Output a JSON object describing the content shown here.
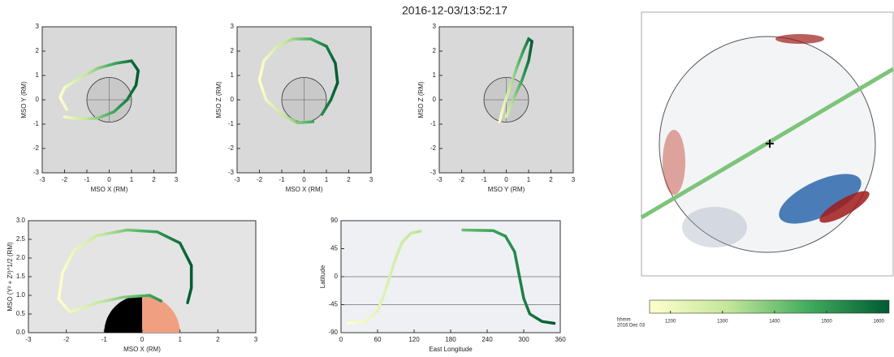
{
  "title": "2016-12-03/13:52:17",
  "chart_data": [
    {
      "type": "line",
      "xlabel": "MSO X (RM)",
      "ylabel": "MSO Y (RM)",
      "xlim": [
        -3,
        3
      ],
      "ylim": [
        -3,
        3
      ],
      "xticks": [
        -3,
        -2,
        -1,
        0,
        1,
        2,
        3
      ],
      "yticks": [
        -3,
        -2,
        -1,
        0,
        1,
        2,
        3
      ],
      "background": "#d9d9d9",
      "series": [
        {
          "x": [
            -1.9,
            -2.2,
            -2.0,
            -1.3,
            -0.5,
            0.3,
            1.0,
            1.3,
            1.2,
            0.8,
            0.2,
            -0.5,
            -1.3,
            -2.0
          ],
          "values": [
            -0.4,
            0.1,
            0.5,
            0.9,
            1.3,
            1.5,
            1.6,
            1.2,
            0.6,
            0,
            -0.5,
            -0.75,
            -0.8,
            -0.7
          ]
        }
      ]
    },
    {
      "type": "line",
      "xlabel": "MSO X (RM)",
      "ylabel": "MSO Z (RM)",
      "xlim": [
        -3,
        3
      ],
      "ylim": [
        -3,
        3
      ],
      "xticks": [
        -3,
        -2,
        -1,
        0,
        1,
        2,
        3
      ],
      "yticks": [
        -3,
        -2,
        -1,
        0,
        1,
        2,
        3
      ],
      "background": "#d9d9d9",
      "series": [
        {
          "x": [
            0.4,
            -0.3,
            -1.0,
            -1.7,
            -2.0,
            -1.8,
            -1.2,
            -0.5,
            0.3,
            1.0,
            1.4,
            1.5,
            1.2,
            0.8
          ],
          "values": [
            -0.9,
            -0.95,
            -0.6,
            0,
            0.8,
            1.6,
            2.2,
            2.5,
            2.5,
            2.2,
            1.5,
            0.7,
            0,
            -0.6
          ]
        }
      ]
    },
    {
      "type": "line",
      "xlabel": "MSO Y (RM)",
      "ylabel": "MSO Z (RM)",
      "xlim": [
        -3,
        3
      ],
      "ylim": [
        -3,
        3
      ],
      "xticks": [
        -3,
        -2,
        -1,
        0,
        1,
        2,
        3
      ],
      "yticks": [
        -3,
        -2,
        -1,
        0,
        1,
        2,
        3
      ],
      "background": "#d9d9d9",
      "series": [
        {
          "x": [
            -0.3,
            -0.1,
            0.2,
            0.5,
            0.8,
            1.0,
            1.15,
            1.0,
            0.7,
            0.3,
            0
          ],
          "values": [
            -0.9,
            -0.2,
            0.6,
            1.4,
            2.1,
            2.5,
            2.4,
            1.6,
            0.8,
            0,
            -0.7
          ]
        }
      ]
    },
    {
      "type": "line",
      "xlabel": "MSO X (RM)",
      "ylabel": "MSO (Y² + Z²)^1/2 (RM)",
      "xlim": [
        -3,
        3
      ],
      "ylim": [
        0,
        3
      ],
      "xticks": [
        -3,
        -2,
        -1,
        0,
        1,
        2,
        3
      ],
      "yticks": [
        {
          "value": 0,
          "label": "0.0"
        },
        0.5,
        {
          "value": 1,
          "label": "1.0"
        },
        1.5,
        {
          "value": 2,
          "label": "2.0"
        },
        2.5,
        {
          "value": 3,
          "label": "3.0"
        }
      ],
      "background": "#e4e4e4",
      "series": [
        {
          "x": [
            0.5,
            0.2,
            -0.5,
            -1.2,
            -1.9,
            -2.2,
            -2.1,
            -1.8,
            -1.2,
            -0.4,
            0.4,
            1.0,
            1.3,
            1.3,
            1.2
          ],
          "values": [
            0.85,
            1.0,
            0.95,
            0.8,
            0.55,
            0.9,
            1.6,
            2.2,
            2.6,
            2.75,
            2.7,
            2.4,
            1.8,
            1.2,
            0.8
          ]
        }
      ]
    },
    {
      "type": "line",
      "xlabel": "East Longitude",
      "ylabel": "Latitude",
      "xlim": [
        0,
        360
      ],
      "ylim": [
        -90,
        90
      ],
      "xticks": [
        0,
        60,
        120,
        180,
        240,
        300,
        360
      ],
      "yticks": [
        90,
        45,
        0,
        -45,
        -90
      ],
      "background": "#eef0f4",
      "series": [
        {
          "x": [
            10,
            40,
            60,
            70,
            80,
            90,
            100,
            115,
            130,
            null,
            200,
            250,
            270,
            285,
            293,
            300,
            310,
            330,
            350
          ],
          "values": [
            -75,
            -72,
            -55,
            -30,
            0,
            30,
            55,
            70,
            73,
            null,
            75,
            74,
            65,
            40,
            0,
            -35,
            -60,
            -72,
            -75
          ]
        }
      ]
    }
  ],
  "colorbar": {
    "label": "hhmm",
    "sublabel": "2016 Dec 03",
    "lim": [
      1160,
      1620
    ],
    "ticks": [
      1200,
      1300,
      1400,
      1500,
      1600
    ],
    "colors": [
      "#ffffcc",
      "#c2e699",
      "#41ab5d",
      "#005a32"
    ]
  }
}
